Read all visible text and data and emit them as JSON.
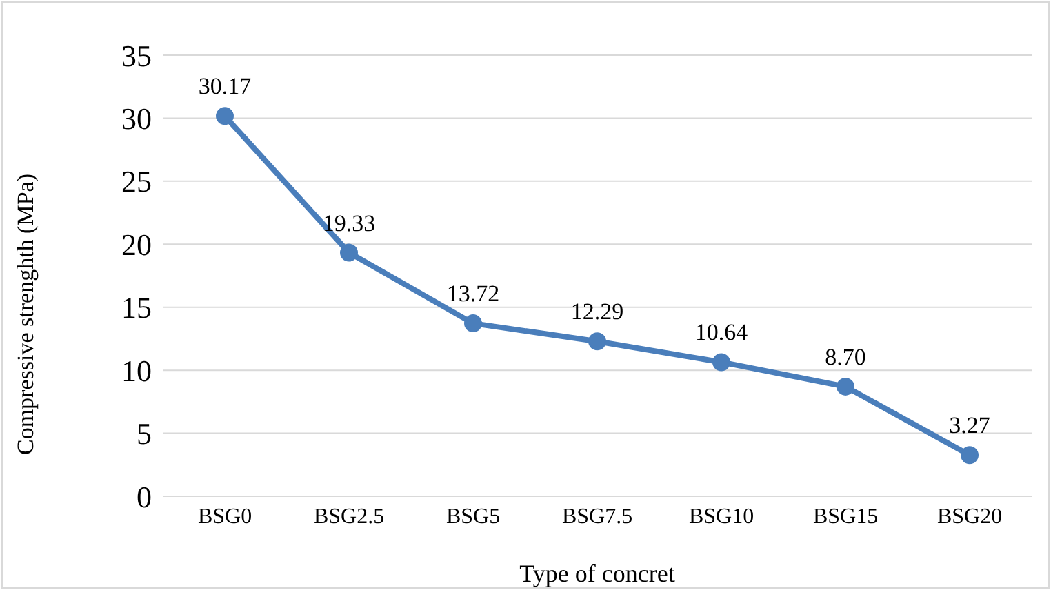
{
  "chart_data": {
    "type": "line",
    "xlabel": "Type of concret",
    "ylabel": "Compressive strenghth (MPa)",
    "categories": [
      "BSG0",
      "BSG2.5",
      "BSG5",
      "BSG7.5",
      "BSG10",
      "BSG15",
      "BSG20"
    ],
    "series": [
      {
        "color": "#4a7ebb",
        "values": [
          30.17,
          19.33,
          13.72,
          12.29,
          10.64,
          8.7,
          3.27
        ],
        "value_labels": [
          "30.17",
          "19.33",
          "13.72",
          "12.29",
          "10.64",
          "8.70",
          "3.27"
        ]
      }
    ],
    "ylim": [
      0,
      35
    ],
    "yticks": [
      0,
      5,
      10,
      15,
      20,
      25,
      30,
      35
    ],
    "grid": "y",
    "legend": false,
    "marker": "circle",
    "line_style": "solid"
  }
}
